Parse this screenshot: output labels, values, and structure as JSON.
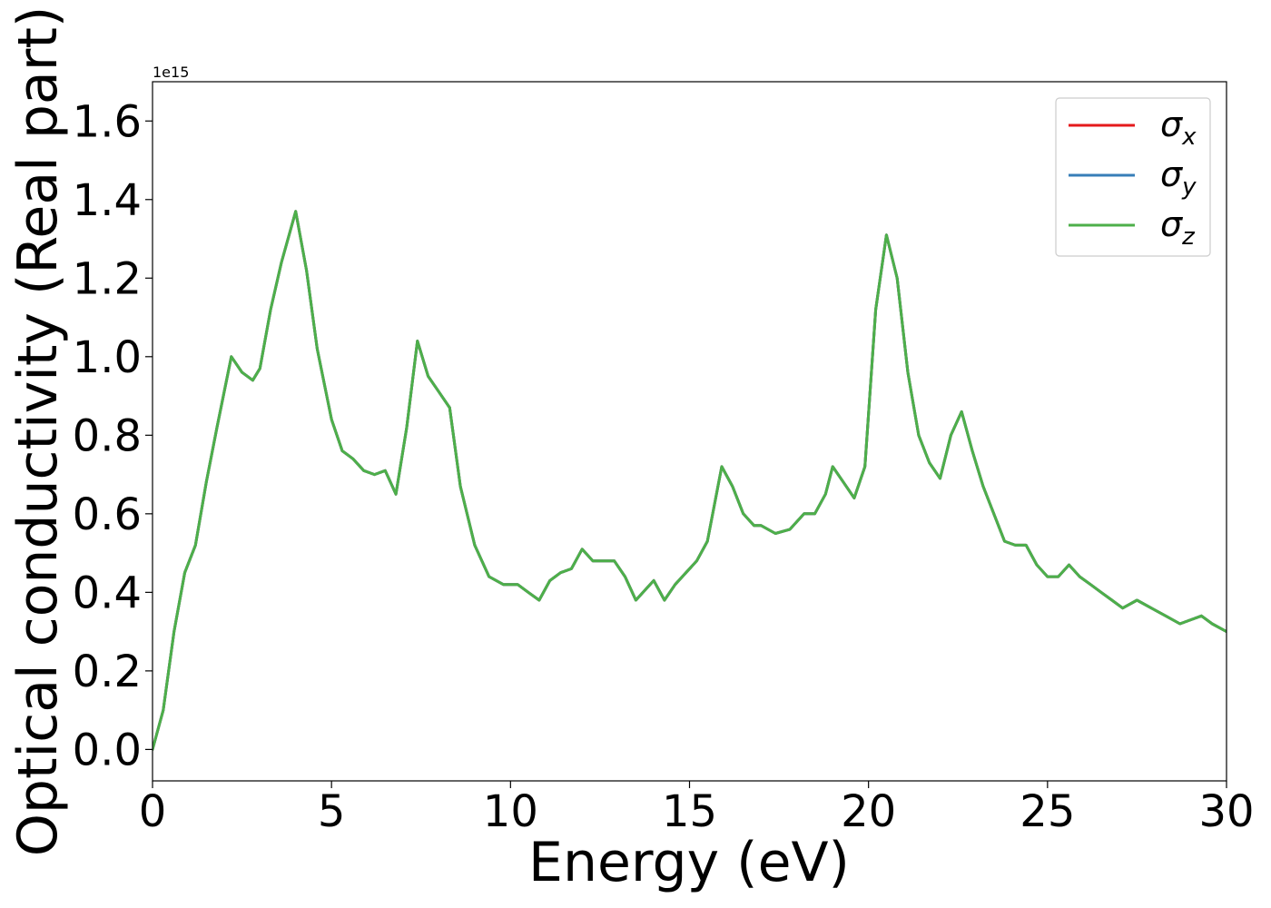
{
  "chart_data": {
    "type": "line",
    "xlabel": "Energy (eV)",
    "ylabel": "Optical conductivity (Real part)",
    "y_offset_text": "1e15",
    "y_scale": 1000000000000000.0,
    "xlim": [
      0,
      30
    ],
    "ylim": [
      -0.08,
      1.7
    ],
    "x_ticks": [
      0,
      5,
      10,
      15,
      20,
      25,
      30
    ],
    "x_tick_labels": [
      "0",
      "5",
      "10",
      "15",
      "20",
      "25",
      "30"
    ],
    "y_ticks": [
      0.0,
      0.2,
      0.4,
      0.6,
      0.8,
      1.0,
      1.2,
      1.4,
      1.6
    ],
    "y_tick_labels": [
      "0.0",
      "0.2",
      "0.4",
      "0.6",
      "0.8",
      "1.0",
      "1.2",
      "1.4",
      "1.6"
    ],
    "grid": false,
    "legend_position": "top-right",
    "colors": {
      "sigma_x": "#e41a1c",
      "sigma_y": "#377eb8",
      "sigma_z": "#4daf4a",
      "axis": "#000000",
      "legend_border": "#cccccc"
    },
    "x": [
      0.0,
      0.3,
      0.6,
      0.9,
      1.2,
      1.5,
      1.8,
      2.2,
      2.5,
      2.8,
      3.0,
      3.3,
      3.6,
      4.0,
      4.3,
      4.6,
      5.0,
      5.3,
      5.6,
      5.9,
      6.2,
      6.5,
      6.8,
      7.1,
      7.4,
      7.7,
      8.0,
      8.3,
      8.6,
      9.0,
      9.4,
      9.8,
      10.2,
      10.5,
      10.8,
      11.1,
      11.4,
      11.7,
      12.0,
      12.3,
      12.6,
      12.9,
      13.2,
      13.5,
      13.8,
      14.0,
      14.3,
      14.6,
      14.9,
      15.2,
      15.5,
      15.9,
      16.2,
      16.5,
      16.8,
      17.0,
      17.4,
      17.8,
      18.2,
      18.5,
      18.8,
      19.0,
      19.3,
      19.6,
      19.9,
      20.2,
      20.5,
      20.8,
      21.1,
      21.4,
      21.7,
      22.0,
      22.3,
      22.6,
      22.9,
      23.2,
      23.5,
      23.8,
      24.1,
      24.4,
      24.7,
      25.0,
      25.3,
      25.6,
      25.9,
      26.2,
      26.5,
      26.8,
      27.1,
      27.5,
      27.9,
      28.3,
      28.7,
      29.0,
      29.3,
      29.6,
      30.0
    ],
    "series": [
      {
        "name": "σx",
        "values": [
          0.0,
          0.1,
          0.3,
          0.45,
          0.52,
          0.68,
          0.82,
          1.0,
          0.96,
          0.94,
          0.97,
          1.12,
          1.24,
          1.37,
          1.22,
          1.02,
          0.84,
          0.76,
          0.74,
          0.71,
          0.7,
          0.71,
          0.65,
          0.82,
          1.04,
          0.95,
          0.91,
          0.87,
          0.67,
          0.52,
          0.44,
          0.42,
          0.42,
          0.4,
          0.38,
          0.43,
          0.45,
          0.46,
          0.51,
          0.48,
          0.48,
          0.48,
          0.44,
          0.38,
          0.41,
          0.43,
          0.38,
          0.42,
          0.45,
          0.48,
          0.53,
          0.72,
          0.67,
          0.6,
          0.57,
          0.57,
          0.55,
          0.56,
          0.6,
          0.6,
          0.65,
          0.72,
          0.68,
          0.64,
          0.72,
          1.12,
          1.31,
          1.2,
          0.96,
          0.8,
          0.73,
          0.69,
          0.8,
          0.86,
          0.76,
          0.67,
          0.6,
          0.53,
          0.52,
          0.52,
          0.47,
          0.44,
          0.44,
          0.47,
          0.44,
          0.42,
          0.4,
          0.38,
          0.36,
          0.38,
          0.36,
          0.34,
          0.32,
          0.33,
          0.34,
          0.32,
          0.3
        ]
      },
      {
        "name": "σy",
        "values": [
          0.0,
          0.1,
          0.3,
          0.45,
          0.52,
          0.68,
          0.82,
          1.0,
          0.96,
          0.94,
          0.97,
          1.12,
          1.24,
          1.37,
          1.22,
          1.02,
          0.84,
          0.76,
          0.74,
          0.71,
          0.7,
          0.71,
          0.65,
          0.82,
          1.04,
          0.95,
          0.91,
          0.87,
          0.67,
          0.52,
          0.44,
          0.42,
          0.42,
          0.4,
          0.38,
          0.43,
          0.45,
          0.46,
          0.51,
          0.48,
          0.48,
          0.48,
          0.44,
          0.38,
          0.41,
          0.43,
          0.38,
          0.42,
          0.45,
          0.48,
          0.53,
          0.72,
          0.67,
          0.6,
          0.57,
          0.57,
          0.55,
          0.56,
          0.6,
          0.6,
          0.65,
          0.72,
          0.68,
          0.64,
          0.72,
          1.12,
          1.31,
          1.2,
          0.96,
          0.8,
          0.73,
          0.69,
          0.8,
          0.86,
          0.76,
          0.67,
          0.6,
          0.53,
          0.52,
          0.52,
          0.47,
          0.44,
          0.44,
          0.47,
          0.44,
          0.42,
          0.4,
          0.38,
          0.36,
          0.38,
          0.36,
          0.34,
          0.32,
          0.33,
          0.34,
          0.32,
          0.3
        ]
      },
      {
        "name": "σz",
        "values": [
          0.0,
          0.1,
          0.3,
          0.45,
          0.52,
          0.68,
          0.82,
          1.0,
          0.96,
          0.94,
          0.97,
          1.12,
          1.24,
          1.37,
          1.22,
          1.02,
          0.84,
          0.76,
          0.74,
          0.71,
          0.7,
          0.71,
          0.65,
          0.82,
          1.04,
          0.95,
          0.91,
          0.87,
          0.67,
          0.52,
          0.44,
          0.42,
          0.42,
          0.4,
          0.38,
          0.43,
          0.45,
          0.46,
          0.51,
          0.48,
          0.48,
          0.48,
          0.44,
          0.38,
          0.41,
          0.43,
          0.38,
          0.42,
          0.45,
          0.48,
          0.53,
          0.72,
          0.67,
          0.6,
          0.57,
          0.57,
          0.55,
          0.56,
          0.6,
          0.6,
          0.65,
          0.72,
          0.68,
          0.64,
          0.72,
          1.12,
          1.31,
          1.2,
          0.96,
          0.8,
          0.73,
          0.69,
          0.8,
          0.86,
          0.76,
          0.67,
          0.6,
          0.53,
          0.52,
          0.52,
          0.47,
          0.44,
          0.44,
          0.47,
          0.44,
          0.42,
          0.4,
          0.38,
          0.36,
          0.38,
          0.36,
          0.34,
          0.32,
          0.33,
          0.34,
          0.32,
          0.3
        ]
      }
    ],
    "legend": [
      {
        "base": "σ",
        "sub": "x",
        "key": "sigma_x"
      },
      {
        "base": "σ",
        "sub": "y",
        "key": "sigma_y"
      },
      {
        "base": "σ",
        "sub": "z",
        "key": "sigma_z"
      }
    ]
  }
}
